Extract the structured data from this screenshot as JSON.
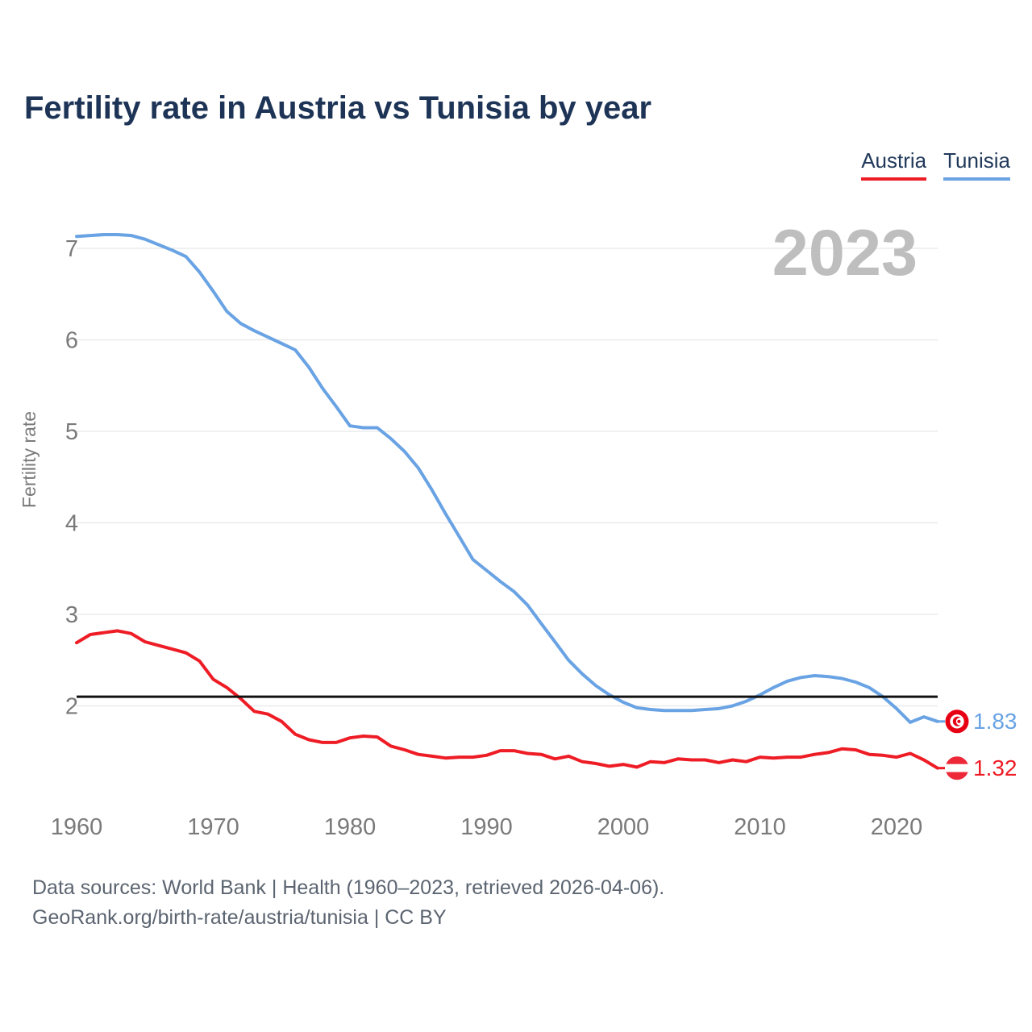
{
  "title": "Fertility rate in Austria vs Tunisia by year",
  "footer": {
    "line1": "Data sources: World Bank | Health (1960–2023, retrieved 2026-04-06).",
    "line2": "GeoRank.org/birth-rate/austria/tunisia | CC BY"
  },
  "chart_data": {
    "type": "line",
    "title": "Fertility rate in Austria vs Tunisia by year",
    "xlabel": "",
    "ylabel": "Fertility rate",
    "watermark": "2023",
    "x_range": [
      1960,
      2023
    ],
    "xticks": [
      1960,
      1970,
      1980,
      1990,
      2000,
      2010,
      2020
    ],
    "yticks": [
      2,
      3,
      4,
      5,
      6,
      7
    ],
    "ylim": [
      1.1,
      7.4
    ],
    "grid": "horizontal",
    "legend_position": "top-right",
    "replacement_level": 2.1,
    "series": [
      {
        "id": "austria",
        "name": "Austria",
        "color": "#ee1c25",
        "values": [
          2.69,
          2.78,
          2.8,
          2.82,
          2.79,
          2.7,
          2.66,
          2.62,
          2.58,
          2.49,
          2.29,
          2.2,
          2.08,
          1.94,
          1.91,
          1.83,
          1.69,
          1.63,
          1.6,
          1.6,
          1.65,
          1.67,
          1.66,
          1.56,
          1.52,
          1.47,
          1.45,
          1.43,
          1.44,
          1.44,
          1.46,
          1.51,
          1.51,
          1.48,
          1.47,
          1.42,
          1.45,
          1.39,
          1.37,
          1.34,
          1.36,
          1.33,
          1.39,
          1.38,
          1.42,
          1.41,
          1.41,
          1.38,
          1.41,
          1.39,
          1.44,
          1.43,
          1.44,
          1.44,
          1.47,
          1.49,
          1.53,
          1.52,
          1.47,
          1.46,
          1.44,
          1.48,
          1.41,
          1.32
        ]
      },
      {
        "id": "tunisia",
        "name": "Tunisia",
        "color": "#69a3e4",
        "values": [
          7.13,
          7.14,
          7.15,
          7.15,
          7.14,
          7.1,
          7.04,
          6.98,
          6.91,
          6.74,
          6.53,
          6.31,
          6.18,
          6.1,
          6.03,
          5.96,
          5.89,
          5.7,
          5.47,
          5.27,
          5.06,
          5.04,
          5.04,
          4.92,
          4.78,
          4.6,
          4.36,
          4.1,
          3.85,
          3.6,
          3.48,
          3.36,
          3.25,
          3.1,
          2.9,
          2.7,
          2.5,
          2.35,
          2.22,
          2.12,
          2.04,
          1.98,
          1.96,
          1.95,
          1.95,
          1.95,
          1.96,
          1.97,
          2.0,
          2.05,
          2.12,
          2.2,
          2.27,
          2.31,
          2.33,
          2.32,
          2.3,
          2.26,
          2.2,
          2.1,
          1.97,
          1.82,
          1.88,
          1.83
        ]
      }
    ],
    "end_labels": {
      "austria": "1.32",
      "tunisia": "1.83"
    },
    "colors": {
      "austria_line": "#ee1c25",
      "tunisia_line": "#69a3e4",
      "replacement_line": "#111111",
      "title_text": "#1d3456",
      "axis_text": "#7a7a7a",
      "watermark_text": "#bebebe",
      "gridline": "#e7e7e7",
      "footer_text": "#5b6470",
      "tunisia_flag_red": "#e70013",
      "austria_flag_red": "#ed2939"
    }
  }
}
